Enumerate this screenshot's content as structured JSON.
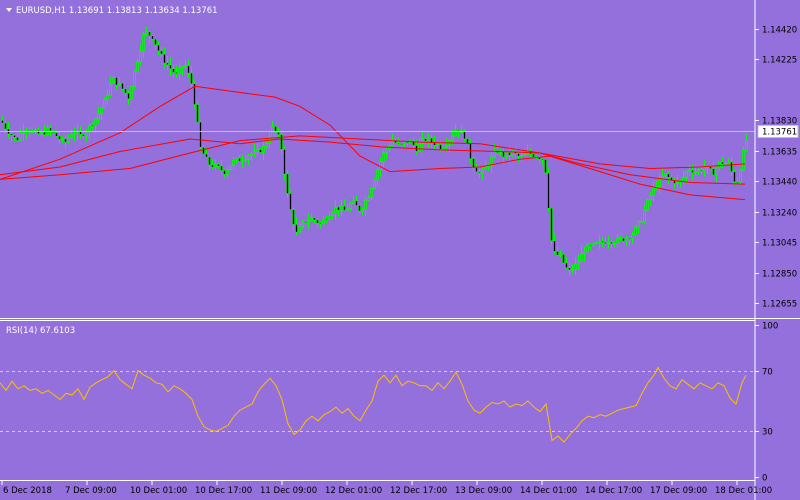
{
  "header": {
    "menu_arrow": "triangle-down-icon",
    "title": "EURUSD,H1 1.13691 1.13813 1.13634 1.13761"
  },
  "indicator": {
    "title": "RSI(14) 67.6103"
  },
  "colors": {
    "background": "#9370DB",
    "bull_candle": "#00FF00",
    "ma_lines": "#FF0000",
    "rsi_line": "#FFC000",
    "price_line": "#C0C0C0",
    "axis_text": "#000000"
  },
  "chart_data": [
    {
      "type": "candlestick",
      "symbol": "EURUSD",
      "timeframe": "H1",
      "last_price_label": "1.13761",
      "y_ticks": [
        "1.14420",
        "1.14225",
        "1.13830",
        "1.13635",
        "1.13440",
        "1.13240",
        "1.13045",
        "1.12850",
        "1.12655"
      ],
      "ylim": [
        1.1257,
        1.1458
      ],
      "x_ticks": [
        "6 Dec 2018",
        "7 Dec 09:00",
        "10 Dec 01:00",
        "10 Dec 17:00",
        "11 Dec 09:00",
        "12 Dec 01:00",
        "12 Dec 17:00",
        "13 Dec 09:00",
        "14 Dec 01:00",
        "14 Dec 17:00",
        "17 Dec 09:00",
        "18 Dec 01:00"
      ],
      "close_path": [
        [
          0,
          1.1383
        ],
        [
          8,
          1.1376
        ],
        [
          16,
          1.137
        ],
        [
          24,
          1.1379
        ],
        [
          32,
          1.1375
        ],
        [
          40,
          1.1374
        ],
        [
          48,
          1.1377
        ],
        [
          56,
          1.1373
        ],
        [
          64,
          1.1368
        ],
        [
          72,
          1.1376
        ],
        [
          80,
          1.1373
        ],
        [
          88,
          1.1378
        ],
        [
          96,
          1.1385
        ],
        [
          104,
          1.1395
        ],
        [
          112,
          1.141
        ],
        [
          120,
          1.1405
        ],
        [
          128,
          1.1398
        ],
        [
          136,
          1.142
        ],
        [
          144,
          1.144
        ],
        [
          152,
          1.1437
        ],
        [
          160,
          1.1425
        ],
        [
          168,
          1.1418
        ],
        [
          176,
          1.1412
        ],
        [
          184,
          1.142
        ],
        [
          192,
          1.1405
        ],
        [
          200,
          1.1365
        ],
        [
          208,
          1.1355
        ],
        [
          216,
          1.1353
        ],
        [
          224,
          1.135
        ],
        [
          232,
          1.1356
        ],
        [
          240,
          1.1358
        ],
        [
          248,
          1.1361
        ],
        [
          256,
          1.1362
        ],
        [
          264,
          1.1366
        ],
        [
          272,
          1.1378
        ],
        [
          280,
          1.137
        ],
        [
          288,
          1.133
        ],
        [
          296,
          1.131
        ],
        [
          304,
          1.1318
        ],
        [
          312,
          1.132
        ],
        [
          320,
          1.1316
        ],
        [
          328,
          1.1323
        ],
        [
          336,
          1.1327
        ],
        [
          344,
          1.1325
        ],
        [
          352,
          1.133
        ],
        [
          360,
          1.1325
        ],
        [
          368,
          1.1335
        ],
        [
          376,
          1.135
        ],
        [
          384,
          1.1363
        ],
        [
          392,
          1.137
        ],
        [
          400,
          1.1366
        ],
        [
          408,
          1.137
        ],
        [
          416,
          1.1365
        ],
        [
          424,
          1.1371
        ],
        [
          432,
          1.1369
        ],
        [
          440,
          1.1366
        ],
        [
          448,
          1.137
        ],
        [
          456,
          1.1378
        ],
        [
          464,
          1.1373
        ],
        [
          472,
          1.1355
        ],
        [
          480,
          1.1348
        ],
        [
          488,
          1.1355
        ],
        [
          496,
          1.1364
        ],
        [
          504,
          1.136
        ],
        [
          512,
          1.1362
        ],
        [
          520,
          1.1359
        ],
        [
          528,
          1.1362
        ],
        [
          536,
          1.136
        ],
        [
          544,
          1.1358
        ],
        [
          552,
          1.1298
        ],
        [
          560,
          1.1295
        ],
        [
          568,
          1.1285
        ],
        [
          576,
          1.129
        ],
        [
          584,
          1.13
        ],
        [
          592,
          1.1302
        ],
        [
          600,
          1.1304
        ],
        [
          608,
          1.1306
        ],
        [
          616,
          1.1305
        ],
        [
          624,
          1.1307
        ],
        [
          632,
          1.131
        ],
        [
          640,
          1.1318
        ],
        [
          648,
          1.1332
        ],
        [
          656,
          1.1342
        ],
        [
          664,
          1.1348
        ],
        [
          672,
          1.1344
        ],
        [
          680,
          1.1343
        ],
        [
          688,
          1.1352
        ],
        [
          696,
          1.135
        ],
        [
          704,
          1.1353
        ],
        [
          712,
          1.1349
        ],
        [
          720,
          1.1356
        ],
        [
          728,
          1.1355
        ],
        [
          736,
          1.1341
        ],
        [
          744,
          1.1365
        ],
        [
          748,
          1.1376
        ]
      ],
      "moving_averages": [
        {
          "points": [
            [
              0,
              1.1345
            ],
            [
              60,
              1.1358
            ],
            [
              120,
              1.1375
            ],
            [
              160,
              1.1392
            ],
            [
              195,
              1.1405
            ],
            [
              240,
              1.1401
            ],
            [
              275,
              1.1398
            ],
            [
              300,
              1.1392
            ],
            [
              330,
              1.138
            ],
            [
              360,
              1.136
            ],
            [
              390,
              1.135
            ],
            [
              440,
              1.1352
            ],
            [
              480,
              1.1353
            ],
            [
              520,
              1.1358
            ],
            [
              550,
              1.136
            ],
            [
              600,
              1.135
            ],
            [
              640,
              1.1342
            ],
            [
              690,
              1.1335
            ],
            [
              745,
              1.1332
            ]
          ]
        },
        {
          "points": [
            [
              0,
              1.1348
            ],
            [
              60,
              1.1353
            ],
            [
              120,
              1.1363
            ],
            [
              190,
              1.1371
            ],
            [
              240,
              1.1368
            ],
            [
              280,
              1.1371
            ],
            [
              330,
              1.1369
            ],
            [
              380,
              1.1366
            ],
            [
              440,
              1.1364
            ],
            [
              500,
              1.1363
            ],
            [
              540,
              1.1362
            ],
            [
              580,
              1.1355
            ],
            [
              630,
              1.1348
            ],
            [
              690,
              1.1343
            ],
            [
              745,
              1.1342
            ]
          ]
        },
        {
          "points": [
            [
              0,
              1.1345
            ],
            [
              60,
              1.1348
            ],
            [
              130,
              1.1352
            ],
            [
              190,
              1.1362
            ],
            [
              240,
              1.137
            ],
            [
              300,
              1.1373
            ],
            [
              360,
              1.1371
            ],
            [
              420,
              1.1369
            ],
            [
              480,
              1.1368
            ],
            [
              540,
              1.1362
            ],
            [
              600,
              1.1355
            ],
            [
              650,
              1.1352
            ],
            [
              700,
              1.1353
            ],
            [
              745,
              1.1355
            ]
          ]
        }
      ]
    },
    {
      "type": "line",
      "indicator": "RSI(14)",
      "y_ticks": [
        "100",
        "70",
        "30",
        "0"
      ],
      "ylim": [
        0,
        100
      ],
      "levels": [
        70,
        30
      ],
      "values": [
        [
          0,
          62
        ],
        [
          6,
          57
        ],
        [
          12,
          63
        ],
        [
          18,
          58
        ],
        [
          24,
          60
        ],
        [
          30,
          57
        ],
        [
          36,
          58
        ],
        [
          42,
          55
        ],
        [
          48,
          57
        ],
        [
          54,
          54
        ],
        [
          60,
          51
        ],
        [
          66,
          55
        ],
        [
          72,
          54
        ],
        [
          78,
          58
        ],
        [
          84,
          51
        ],
        [
          90,
          59
        ],
        [
          96,
          62
        ],
        [
          102,
          64
        ],
        [
          108,
          66
        ],
        [
          114,
          70
        ],
        [
          120,
          64
        ],
        [
          126,
          61
        ],
        [
          132,
          58
        ],
        [
          138,
          70
        ],
        [
          144,
          67
        ],
        [
          150,
          65
        ],
        [
          156,
          62
        ],
        [
          162,
          61
        ],
        [
          168,
          56
        ],
        [
          174,
          60
        ],
        [
          180,
          58
        ],
        [
          186,
          55
        ],
        [
          192,
          51
        ],
        [
          198,
          40
        ],
        [
          204,
          33
        ],
        [
          210,
          31
        ],
        [
          216,
          30
        ],
        [
          222,
          32
        ],
        [
          228,
          34
        ],
        [
          234,
          40
        ],
        [
          240,
          44
        ],
        [
          246,
          46
        ],
        [
          252,
          48
        ],
        [
          258,
          56
        ],
        [
          264,
          61
        ],
        [
          270,
          65
        ],
        [
          276,
          60
        ],
        [
          282,
          51
        ],
        [
          288,
          35
        ],
        [
          294,
          28
        ],
        [
          300,
          31
        ],
        [
          306,
          37
        ],
        [
          312,
          40
        ],
        [
          318,
          37
        ],
        [
          324,
          41
        ],
        [
          330,
          43
        ],
        [
          336,
          46
        ],
        [
          342,
          42
        ],
        [
          348,
          45
        ],
        [
          354,
          40
        ],
        [
          360,
          37
        ],
        [
          366,
          44
        ],
        [
          372,
          50
        ],
        [
          378,
          63
        ],
        [
          384,
          67
        ],
        [
          390,
          62
        ],
        [
          396,
          67
        ],
        [
          402,
          60
        ],
        [
          408,
          63
        ],
        [
          414,
          62
        ],
        [
          420,
          60
        ],
        [
          426,
          60
        ],
        [
          432,
          57
        ],
        [
          438,
          62
        ],
        [
          444,
          58
        ],
        [
          450,
          63
        ],
        [
          456,
          69
        ],
        [
          462,
          61
        ],
        [
          468,
          50
        ],
        [
          474,
          44
        ],
        [
          480,
          42
        ],
        [
          486,
          46
        ],
        [
          492,
          49
        ],
        [
          498,
          48
        ],
        [
          504,
          50
        ],
        [
          510,
          46
        ],
        [
          516,
          48
        ],
        [
          522,
          47
        ],
        [
          528,
          50
        ],
        [
          534,
          46
        ],
        [
          540,
          43
        ],
        [
          546,
          48
        ],
        [
          552,
          24
        ],
        [
          558,
          27
        ],
        [
          564,
          23
        ],
        [
          570,
          28
        ],
        [
          576,
          32
        ],
        [
          582,
          37
        ],
        [
          588,
          40
        ],
        [
          594,
          39
        ],
        [
          600,
          41
        ],
        [
          606,
          40
        ],
        [
          612,
          42
        ],
        [
          618,
          44
        ],
        [
          624,
          45
        ],
        [
          630,
          46
        ],
        [
          636,
          47
        ],
        [
          642,
          55
        ],
        [
          648,
          62
        ],
        [
          654,
          67
        ],
        [
          658,
          72
        ],
        [
          664,
          65
        ],
        [
          670,
          60
        ],
        [
          676,
          58
        ],
        [
          682,
          64
        ],
        [
          688,
          61
        ],
        [
          694,
          58
        ],
        [
          700,
          62
        ],
        [
          706,
          60
        ],
        [
          712,
          58
        ],
        [
          718,
          62
        ],
        [
          724,
          60
        ],
        [
          730,
          52
        ],
        [
          736,
          48
        ],
        [
          742,
          62
        ],
        [
          746,
          67
        ]
      ]
    }
  ]
}
